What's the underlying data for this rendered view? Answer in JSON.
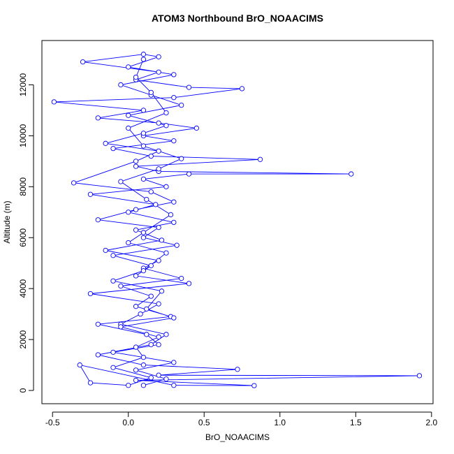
{
  "chart_data": {
    "type": "line",
    "title": "ATOM3 Northbound BrO_NOAACIMS",
    "x_label": "BrO_NOAACIMS",
    "y_label": "Altitude (m)",
    "color": "#0000ff",
    "markers": "open-circle",
    "xlim": [
      -0.57,
      2.01
    ],
    "ylim": [
      -520,
      13740
    ],
    "xticks": [
      -0.5,
      {
        "value": 0,
        "label": "0.0"
      },
      0.5,
      {
        "value": 1,
        "label": "1.0"
      },
      1.5,
      {
        "value": 2,
        "label": "2.0"
      }
    ],
    "yticks": [
      0,
      2000,
      4000,
      6000,
      8000,
      10000,
      12000
    ],
    "x": [
      0.1,
      0.25,
      0.05,
      0.3,
      -0.1,
      0.2,
      0.12,
      -0.2,
      0.28,
      0.05,
      0.15,
      -0.05,
      0.35,
      0.1,
      0.2,
      -0.15,
      0.22,
      0.05,
      0.3,
      0.0,
      0.18,
      -0.25,
      0.25,
      0.1,
      0.4,
      1.47,
      0.2,
      0.05,
      0.87,
      0.15,
      -0.1,
      0.3,
      0.1,
      0.45,
      0.2,
      -0.2,
      0.1,
      -0.49,
      0.3,
      0.75,
      0.4,
      0.05,
      0.2,
      -0.3,
      0.1,
      0.2,
      0.0,
      0.3,
      -0.05,
      0.15,
      0.35,
      0.0,
      0.25,
      0.1,
      -0.15,
      0.2,
      0.05,
      -0.36,
      0.15,
      0.3,
      0.05,
      -0.2,
      0.2,
      0.1,
      0.32,
      -0.1,
      0.15,
      0.05,
      0.4,
      -0.25,
      0.2,
      0.08,
      -0.05,
      0.25,
      0.15,
      -0.2,
      0.1,
      0.72,
      0.2,
      1.92,
      0.05,
      0.83,
      0.3,
      -0.32,
      -0.25,
      0.0,
      0.15,
      -0.1,
      0.1,
      0.05,
      0.2,
      -0.05,
      0.3,
      0.12,
      0.22,
      -0.1,
      0.1,
      0.25,
      0.0,
      0.1,
      0.28,
      0.12,
      -0.05,
      0.2,
      0.35,
      0.1,
      0.0,
      0.25,
      0.15,
      0.05,
      0.1
    ],
    "values": [
      200,
      450,
      800,
      1100,
      1500,
      1800,
      2200,
      2600,
      2900,
      3300,
      3700,
      4100,
      4400,
      4800,
      5100,
      5500,
      5900,
      6300,
      6600,
      7000,
      7300,
      7700,
      8000,
      8300,
      8500,
      8500,
      8600,
      8800,
      9070,
      9200,
      9500,
      9800,
      10000,
      10300,
      10500,
      10700,
      11000,
      11330,
      11500,
      11850,
      11900,
      12200,
      12500,
      12900,
      13200,
      13100,
      12700,
      12400,
      12000,
      11600,
      11200,
      10800,
      10400,
      10100,
      9700,
      9400,
      9000,
      8150,
      7800,
      7400,
      7100,
      6700,
      6400,
      6000,
      5700,
      5300,
      4900,
      4500,
      4200,
      3800,
      3400,
      3000,
      2600,
      2200,
      1800,
      1400,
      1000,
      830,
      600,
      580,
      400,
      190,
      200,
      1000,
      300,
      200,
      500,
      900,
      1300,
      1700,
      2100,
      2500,
      2850,
      3200,
      3900,
      4300,
      4700,
      5400,
      5800,
      6200,
      6900,
      7500,
      8200,
      8700,
      9100,
      9600,
      10300,
      10900,
      11700,
      12300,
      13000
    ]
  }
}
